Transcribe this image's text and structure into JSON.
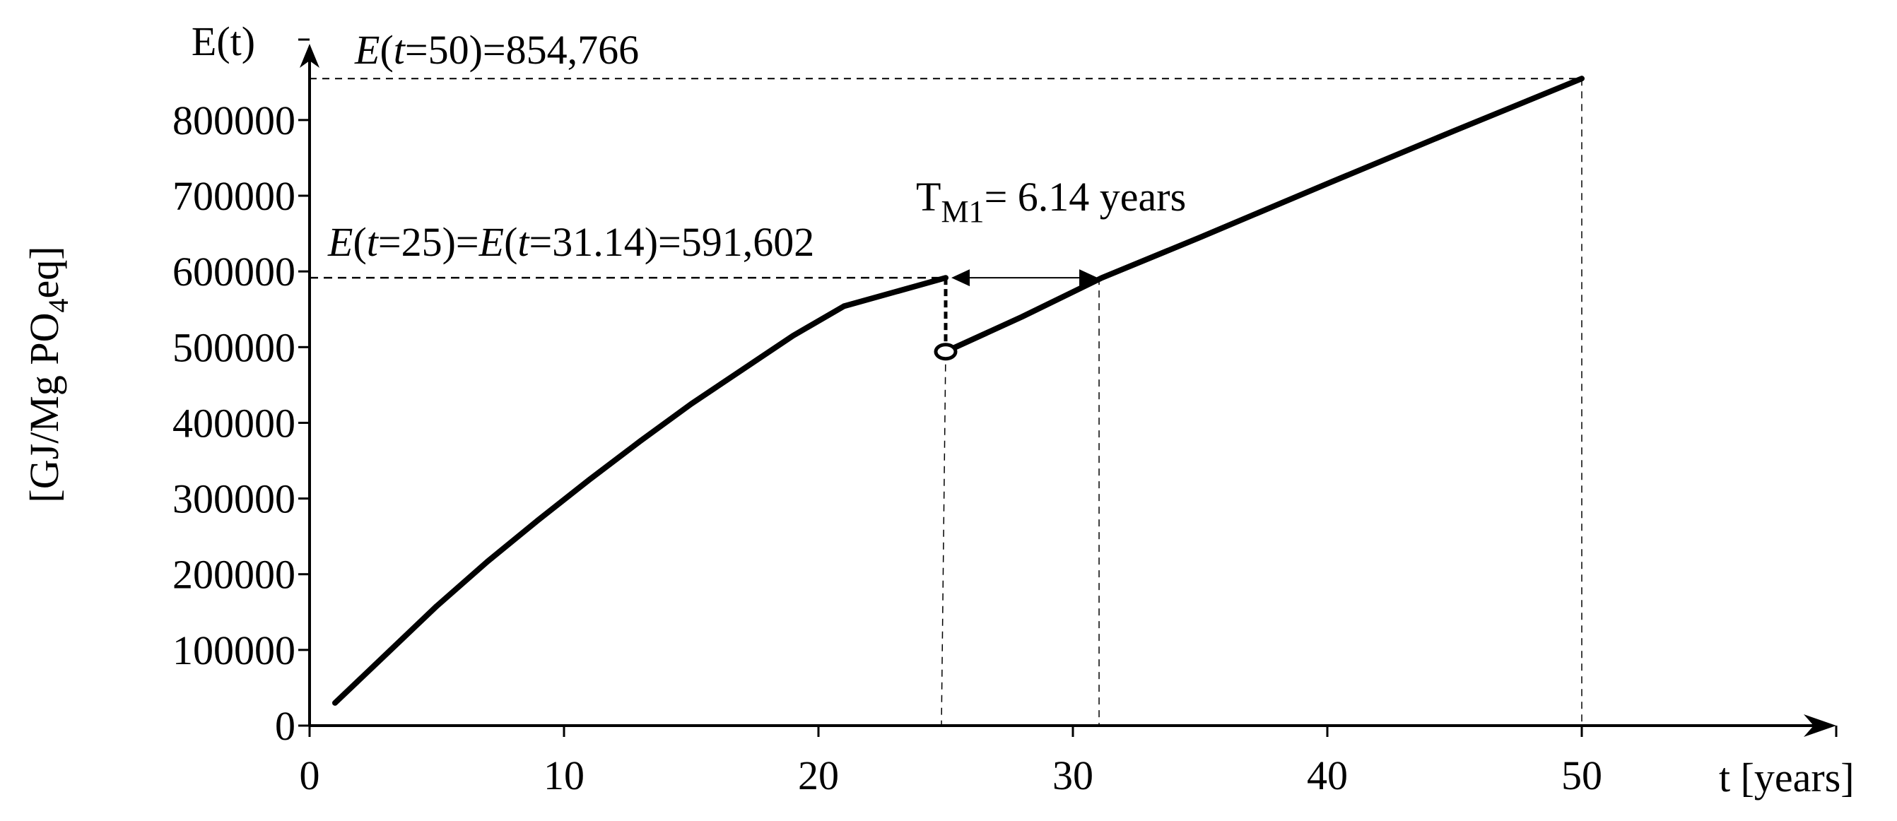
{
  "chart_data": {
    "type": "line",
    "xlabel": "t [years]",
    "ylabel_y_axis_top": "E(t)",
    "ylabel": {
      "prefix": "[GJ/Mg PO",
      "sub": "4",
      "suffix": "eq]"
    },
    "xlim": [
      0,
      60
    ],
    "ylim": [
      0,
      850000
    ],
    "x_ticks": [
      0,
      10,
      20,
      30,
      40,
      50
    ],
    "x_tick_labels": [
      "0",
      "10",
      "20",
      "30",
      "40",
      "50"
    ],
    "y_ticks": [
      0,
      100000,
      200000,
      300000,
      400000,
      500000,
      600000,
      700000,
      800000
    ],
    "y_tick_labels": [
      "0",
      "100000",
      "200000",
      "300000",
      "400000",
      "500000",
      "600000",
      "700000",
      "800000"
    ],
    "grid": false,
    "series": [
      {
        "points": [
          [
            1,
            30000
          ],
          [
            3,
            94000
          ],
          [
            5,
            158000
          ],
          [
            7,
            217000
          ],
          [
            9,
            272000
          ],
          [
            11,
            325000
          ],
          [
            13,
            376000
          ],
          [
            15,
            425000
          ],
          [
            17,
            470000
          ],
          [
            19,
            515000
          ],
          [
            21,
            554000
          ],
          [
            25,
            591602
          ]
        ]
      },
      {
        "points": [
          [
            25,
            494000
          ],
          [
            28,
            540000
          ],
          [
            31.14,
            591602
          ],
          [
            35,
            645000
          ],
          [
            40,
            716000
          ],
          [
            45,
            786000
          ],
          [
            50,
            854766
          ]
        ]
      }
    ],
    "open_point": [
      25,
      494000
    ],
    "reference_lines": {
      "e50": {
        "y": 854766,
        "x": 50
      },
      "e25": {
        "y": 591602,
        "x_from": 25,
        "x_to": 31.14
      }
    },
    "annotations": {
      "e50": {
        "parts": [
          {
            "t": "E",
            "italic": true
          },
          {
            "t": "(",
            "italic": false
          },
          {
            "t": "t",
            "italic": true
          },
          {
            "t": "=50)=854,766",
            "italic": false
          }
        ]
      },
      "e25": {
        "parts": [
          {
            "t": "E",
            "italic": true
          },
          {
            "t": "(",
            "italic": false
          },
          {
            "t": "t",
            "italic": true
          },
          {
            "t": "=25)=",
            "italic": false
          },
          {
            "t": "E",
            "italic": true
          },
          {
            "t": "(",
            "italic": false
          },
          {
            "t": "t",
            "italic": true
          },
          {
            "t": "=31.14)=591,602",
            "italic": false
          }
        ]
      },
      "tm1": {
        "main": "T",
        "sub": "M1",
        "rest": "= 6.14 years"
      }
    }
  }
}
